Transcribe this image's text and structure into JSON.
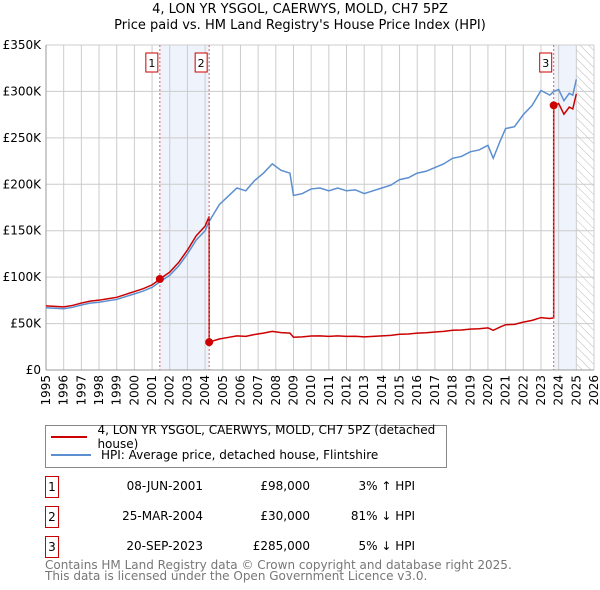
{
  "title_line1": "4, LON YR YSGOL, CAERWYS, MOLD, CH7 5PZ",
  "title_line2": "Price paid vs. HM Land Registry's House Price Index (HPI)",
  "chart_data": {
    "type": "line",
    "xlim": [
      1995,
      2026
    ],
    "ylim": [
      0,
      350000
    ],
    "yticks": [
      0,
      50000,
      100000,
      150000,
      200000,
      250000,
      300000,
      350000
    ],
    "ytick_labels": [
      "£0",
      "£50K",
      "£100K",
      "£150K",
      "£200K",
      "£250K",
      "£300K",
      "£350K"
    ],
    "xticks": [
      "1995",
      "1996",
      "1997",
      "1998",
      "1999",
      "2000",
      "2001",
      "2002",
      "2003",
      "2004",
      "2005",
      "2006",
      "2007",
      "2008",
      "2009",
      "2010",
      "2011",
      "2012",
      "2013",
      "2014",
      "2015",
      "2016",
      "2017",
      "2018",
      "2019",
      "2020",
      "2021",
      "2022",
      "2023",
      "2024",
      "2025",
      "2026"
    ],
    "grid": true,
    "forecast_from": 2025.0,
    "hpi": {
      "name": "HPI: Average price, detached house, Flintshire",
      "color": "#5b8fd0",
      "x": [
        1995,
        1995.5,
        1996,
        1996.5,
        1997,
        1997.5,
        1998,
        1998.5,
        1999,
        1999.5,
        2000,
        2000.5,
        2001,
        2001.45,
        2002,
        2002.5,
        2003,
        2003.5,
        2004,
        2004.23,
        2004.8,
        2005.3,
        2005.8,
        2006.3,
        2006.8,
        2007.3,
        2007.8,
        2008.3,
        2008.8,
        2009.0,
        2009.5,
        2010,
        2010.5,
        2011,
        2011.5,
        2012,
        2012.5,
        2013,
        2013.5,
        2014,
        2014.5,
        2015,
        2015.5,
        2016,
        2016.5,
        2017,
        2017.5,
        2018,
        2018.5,
        2019,
        2019.5,
        2020,
        2020.3,
        2020.7,
        2021,
        2021.5,
        2022,
        2022.5,
        2023,
        2023.5,
        2023.72,
        2024,
        2024.3,
        2024.6,
        2024.8,
        2025.0
      ],
      "y": [
        67000,
        66500,
        66000,
        67500,
        70000,
        72000,
        73000,
        74500,
        76000,
        79000,
        82000,
        85000,
        89000,
        95000,
        102000,
        112000,
        125000,
        140000,
        150000,
        160000,
        178000,
        187000,
        196000,
        193000,
        204000,
        212000,
        222000,
        215000,
        212000,
        188000,
        190000,
        195000,
        196000,
        193000,
        196000,
        193000,
        194000,
        190000,
        193000,
        196000,
        199000,
        205000,
        207000,
        212000,
        214000,
        218000,
        222000,
        228000,
        230000,
        235000,
        237000,
        242000,
        228000,
        247000,
        260000,
        262000,
        275000,
        285000,
        301000,
        296000,
        300000,
        302000,
        290000,
        298000,
        296000,
        313000
      ]
    },
    "property": {
      "name": "4, LON YR YSGOL, CAERWYS, MOLD, CH7 5PZ (detached house)",
      "color": "#cc0000"
    },
    "sales": [
      {
        "n": "1",
        "x": 2001.44,
        "price": 98000,
        "date": "08-JUN-2001",
        "price_label": "£98,000",
        "hpi_label": "3% ↑ HPI"
      },
      {
        "n": "2",
        "x": 2004.23,
        "price": 30000,
        "date": "25-MAR-2004",
        "price_label": "£30,000",
        "hpi_label": "81% ↓ HPI"
      },
      {
        "n": "3",
        "x": 2023.72,
        "price": 285000,
        "date": "20-SEP-2023",
        "price_label": "£285,000",
        "hpi_label": "5% ↓ HPI"
      }
    ]
  },
  "footer_line1": "Contains HM Land Registry data © Crown copyright and database right 2025.",
  "footer_line2": "This data is licensed under the Open Government Licence v3.0."
}
